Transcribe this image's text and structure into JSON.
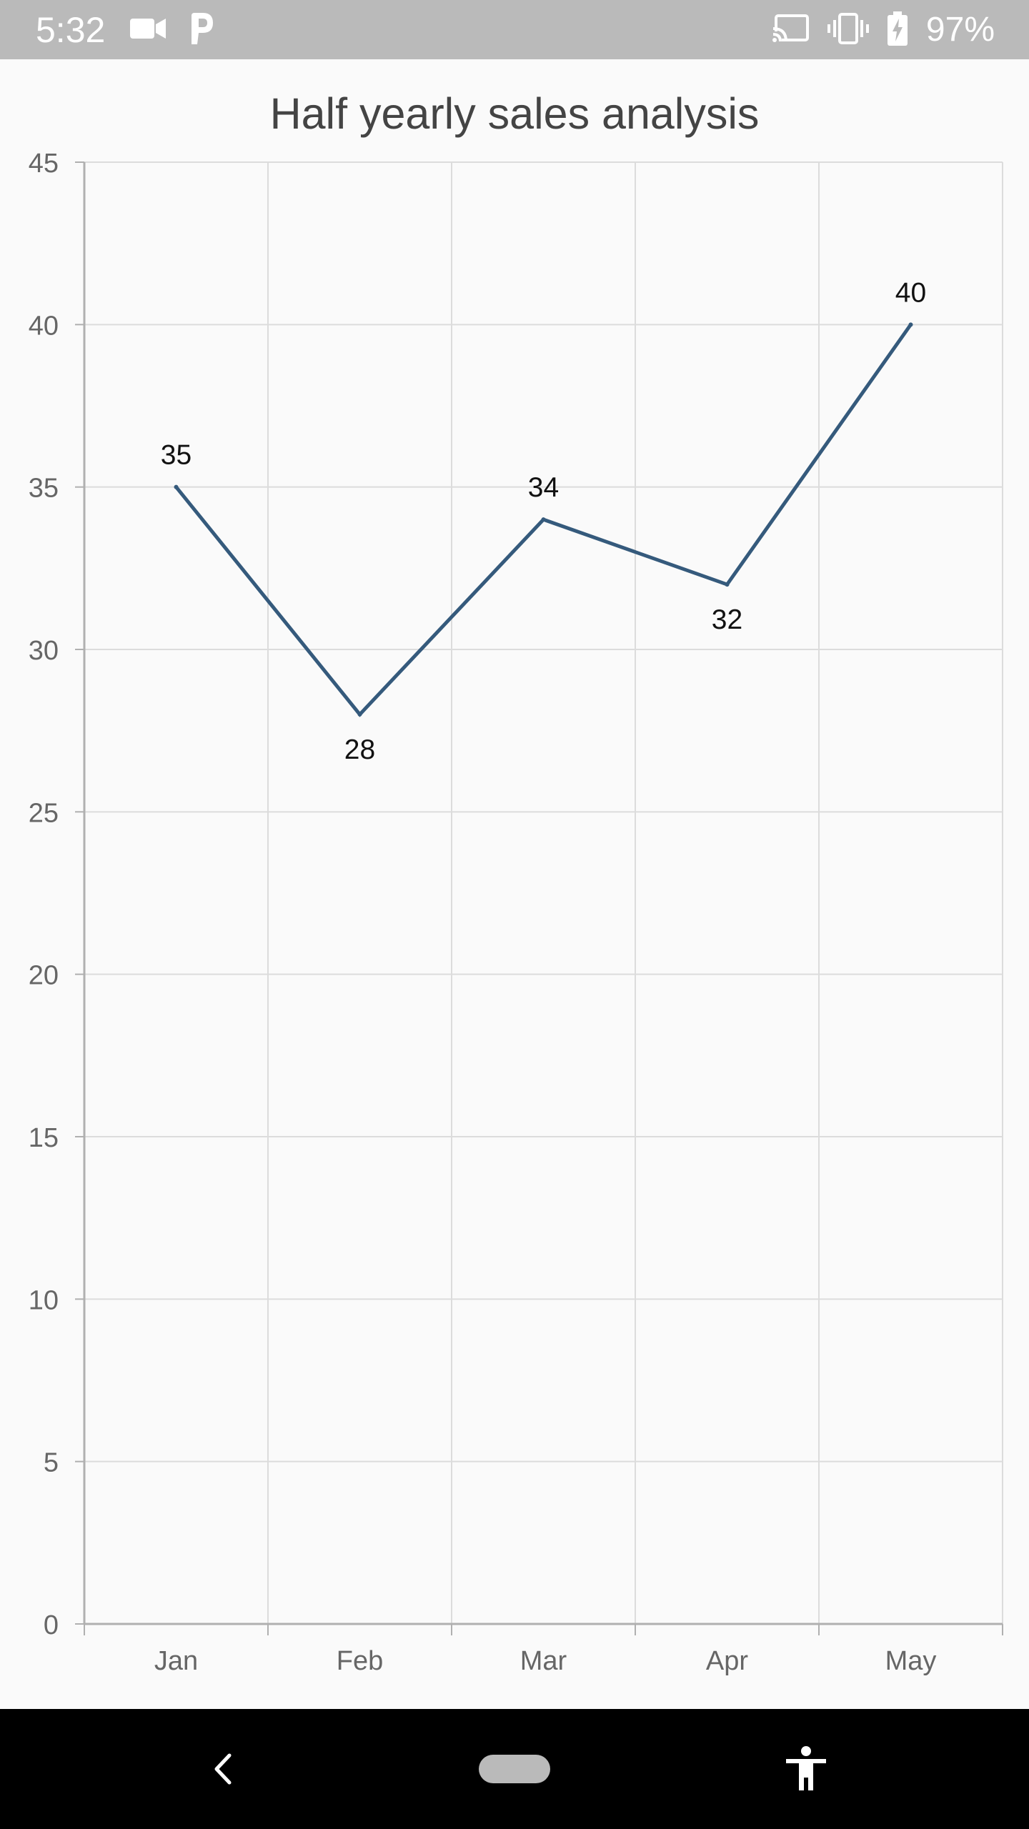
{
  "status_bar": {
    "time": "5:32",
    "battery": "97%",
    "icons": [
      "video-camera-icon",
      "p-app-icon",
      "cast-icon",
      "vibrate-icon",
      "battery-charging-icon"
    ]
  },
  "chart_data": {
    "type": "line",
    "title": "Half yearly sales analysis",
    "categories": [
      "Jan",
      "Feb",
      "Mar",
      "Apr",
      "May"
    ],
    "series": [
      {
        "values": [
          35,
          28,
          34,
          32,
          40
        ],
        "color": "#355a7c"
      }
    ],
    "data_labels": [
      "35",
      "28",
      "34",
      "32",
      "40"
    ],
    "y_ticks": [
      "0",
      "5",
      "10",
      "15",
      "20",
      "25",
      "30",
      "35",
      "40",
      "45"
    ],
    "ylim": [
      0,
      45
    ],
    "y_step": 5,
    "grid": true,
    "xlabel": "",
    "ylabel": ""
  },
  "nav_bar": {
    "icons": [
      "back-icon",
      "home-pill-icon",
      "accessibility-icon"
    ]
  }
}
